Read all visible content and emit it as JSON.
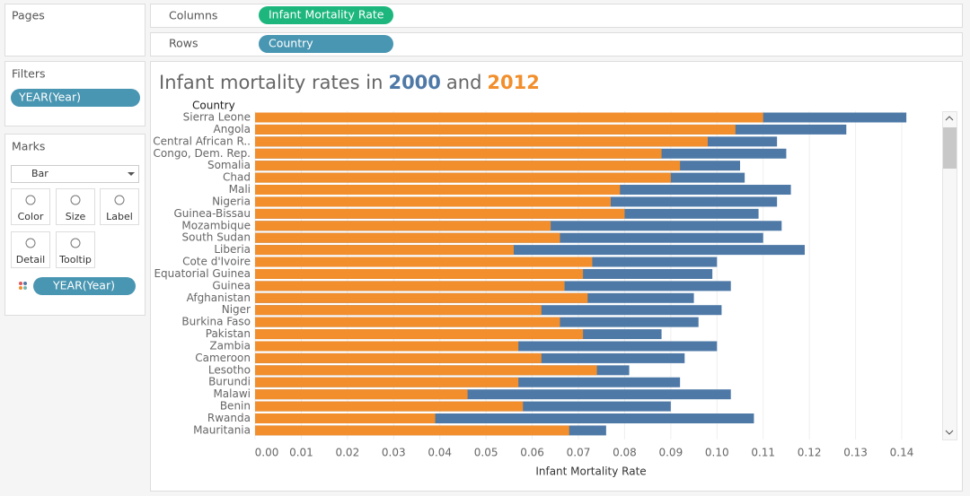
{
  "pages_label": "Pages",
  "filters": {
    "label": "Filters",
    "pill": "YEAR(Year)"
  },
  "marks": {
    "label": "Marks",
    "mark_type": "Bar",
    "buttons": [
      "Color",
      "Size",
      "Label",
      "Detail",
      "Tooltip"
    ],
    "pill": "YEAR(Year)"
  },
  "columns": {
    "label": "Columns",
    "pill": "Infant Mortality Rate"
  },
  "rows": {
    "label": "Rows",
    "pill": "Country"
  },
  "chart_data": {
    "type": "bar",
    "title_prefix": "Infant mortality rates in",
    "title_joiner": "and",
    "row_header": "Country",
    "xlabel": "Infant Mortality Rate",
    "categories": [
      "Sierra Leone",
      "Angola",
      "Central African R..",
      "Congo, Dem. Rep.",
      "Somalia",
      "Chad",
      "Mali",
      "Nigeria",
      "Guinea-Bissau",
      "Mozambique",
      "South Sudan",
      "Liberia",
      "Cote d'Ivoire",
      "Equatorial Guinea",
      "Guinea",
      "Afghanistan",
      "Niger",
      "Burkina Faso",
      "Pakistan",
      "Zambia",
      "Cameroon",
      "Lesotho",
      "Burundi",
      "Malawi",
      "Benin",
      "Rwanda",
      "Mauritania"
    ],
    "series": [
      {
        "name": "2000",
        "color": "#4e79a7",
        "values": [
          0.141,
          0.128,
          0.113,
          0.115,
          0.105,
          0.106,
          0.116,
          0.113,
          0.109,
          0.114,
          0.11,
          0.119,
          0.1,
          0.099,
          0.103,
          0.095,
          0.101,
          0.096,
          0.088,
          0.1,
          0.093,
          0.081,
          0.092,
          0.103,
          0.09,
          0.108,
          0.076
        ]
      },
      {
        "name": "2012",
        "color": "#f28e2b",
        "values": [
          0.11,
          0.104,
          0.098,
          0.088,
          0.092,
          0.09,
          0.079,
          0.077,
          0.08,
          0.064,
          0.066,
          0.056,
          0.073,
          0.071,
          0.067,
          0.072,
          0.062,
          0.066,
          0.071,
          0.057,
          0.062,
          0.074,
          0.057,
          0.046,
          0.058,
          0.039,
          0.068
        ]
      }
    ],
    "xlim": [
      0,
      0.147
    ],
    "xticks": [
      {
        "value": 0,
        "label": "0.00"
      },
      {
        "value": 0.01,
        "label": "0.01"
      },
      {
        "value": 0.02,
        "label": "0.02"
      },
      {
        "value": 0.03,
        "label": "0.03"
      },
      {
        "value": 0.04,
        "label": "0.04"
      },
      {
        "value": 0.05,
        "label": "0.05"
      },
      {
        "value": 0.06,
        "label": "0.06"
      },
      {
        "value": 0.07,
        "label": "0.07"
      },
      {
        "value": 0.08,
        "label": "0.08"
      },
      {
        "value": 0.09,
        "label": "0.09"
      },
      {
        "value": 0.1,
        "label": "0.10"
      },
      {
        "value": 0.11,
        "label": "0.11"
      },
      {
        "value": 0.12,
        "label": "0.12"
      },
      {
        "value": 0.13,
        "label": "0.13"
      },
      {
        "value": 0.14,
        "label": "0.14"
      }
    ],
    "grid": true
  }
}
